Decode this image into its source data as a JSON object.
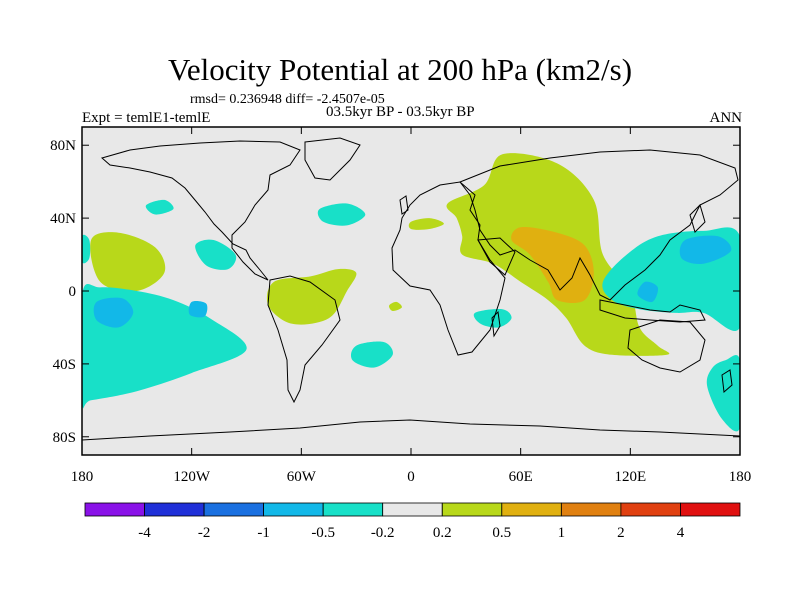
{
  "header": {
    "title": "Velocity Potential at 200 hPa (km2/s)",
    "stats": "rmsd= 0.236948  diff= -2.4507e-05",
    "experiment": "Expt = temlE1-temlE",
    "period": "03.5kyr BP - 03.5kyr BP",
    "season": "ANN"
  },
  "map": {
    "projection": "cylindrical equidistant",
    "lon_range": [
      -180,
      180
    ],
    "lat_range": [
      -90,
      90
    ],
    "lat_labels": [
      {
        "label": "80N",
        "lat": 80
      },
      {
        "label": "40N",
        "lat": 40
      },
      {
        "label": "0",
        "lat": 0
      },
      {
        "label": "40S",
        "lat": -40
      },
      {
        "label": "80S",
        "lat": -80
      }
    ],
    "lon_labels": [
      {
        "label": "180",
        "lon": -180
      },
      {
        "label": "120W",
        "lon": -120
      },
      {
        "label": "60W",
        "lon": -60
      },
      {
        "label": "0",
        "lon": 0
      },
      {
        "label": "60E",
        "lon": 60
      },
      {
        "label": "120E",
        "lon": 120
      },
      {
        "label": "180",
        "lon": 180
      }
    ]
  },
  "chart_data": {
    "type": "contour-map",
    "title": "Velocity Potential at 200 hPa (km2/s)",
    "background_color": "#e8e8e8",
    "colorbar": {
      "colors": [
        "#8a12e8",
        "#2030d8",
        "#1a70e0",
        "#12b8e8",
        "#18e0c8",
        "#e8e8e8",
        "#b8d81a",
        "#e0b010",
        "#e08010",
        "#e04010",
        "#e01010"
      ],
      "labels": [
        "-4",
        "-2",
        "-1",
        "-0.5",
        "-0.2",
        "0.2",
        "0.5",
        "1",
        "2",
        "4"
      ]
    },
    "regions": [
      {
        "name": "asia-positive",
        "level": "0.2 to 0.5",
        "color": "#b8d81a",
        "outline": [
          [
            50,
            75
          ],
          [
            80,
            70
          ],
          [
            100,
            50
          ],
          [
            105,
            20
          ],
          [
            120,
            0
          ],
          [
            125,
            -20
          ],
          [
            135,
            -30
          ],
          [
            140,
            -35
          ],
          [
            110,
            -35
          ],
          [
            95,
            -30
          ],
          [
            85,
            -15
          ],
          [
            75,
            -5
          ],
          [
            60,
            5
          ],
          [
            45,
            15
          ],
          [
            28,
            20
          ],
          [
            28,
            30
          ],
          [
            25,
            40
          ],
          [
            20,
            48
          ],
          [
            40,
            58
          ]
        ]
      },
      {
        "name": "asia-core",
        "level": "0.5 to 1",
        "color": "#e0b010",
        "outline": [
          [
            60,
            35
          ],
          [
            80,
            32
          ],
          [
            95,
            25
          ],
          [
            100,
            10
          ],
          [
            95,
            -5
          ],
          [
            80,
            -5
          ],
          [
            75,
            5
          ],
          [
            65,
            20
          ],
          [
            55,
            28
          ]
        ]
      },
      {
        "name": "mideast-patch",
        "level": "0.2 to 0.5",
        "color": "#b8d81a",
        "outline": [
          [
            0,
            38
          ],
          [
            10,
            40
          ],
          [
            18,
            37
          ],
          [
            10,
            34
          ],
          [
            0,
            34
          ]
        ]
      },
      {
        "name": "atlantic-positive",
        "level": "0.2 to 0.5",
        "color": "#b8d81a",
        "outline": [
          [
            -75,
            5
          ],
          [
            -55,
            8
          ],
          [
            -40,
            12
          ],
          [
            -30,
            10
          ],
          [
            -35,
            0
          ],
          [
            -45,
            -15
          ],
          [
            -65,
            -18
          ],
          [
            -78,
            -8
          ]
        ]
      },
      {
        "name": "atlantic-small",
        "level": "0.2 to 0.5",
        "color": "#b8d81a",
        "outline": [
          [
            -12,
            -8
          ],
          [
            -8,
            -6
          ],
          [
            -5,
            -9
          ],
          [
            -10,
            -11
          ]
        ]
      },
      {
        "name": "pacific-positive-north",
        "level": "0.2 to 0.5",
        "color": "#b8d81a",
        "outline": [
          [
            -175,
            28
          ],
          [
            -160,
            32
          ],
          [
            -140,
            24
          ],
          [
            -135,
            10
          ],
          [
            -150,
            0
          ],
          [
            -170,
            5
          ]
        ]
      },
      {
        "name": "mexico-negative",
        "level": "-0.5 to -0.2",
        "color": "#18e0c8",
        "outline": [
          [
            -118,
            25
          ],
          [
            -108,
            28
          ],
          [
            -96,
            20
          ],
          [
            -100,
            12
          ],
          [
            -112,
            14
          ]
        ]
      },
      {
        "name": "north-pacific-negative",
        "level": "-0.5 to -0.2",
        "color": "#18e0c8",
        "outline": [
          [
            -145,
            47
          ],
          [
            -135,
            50
          ],
          [
            -130,
            45
          ],
          [
            -140,
            42
          ]
        ]
      },
      {
        "name": "north-atlantic-negative",
        "level": "-0.5 to -0.2",
        "color": "#18e0c8",
        "outline": [
          [
            -50,
            45
          ],
          [
            -35,
            48
          ],
          [
            -25,
            42
          ],
          [
            -35,
            36
          ],
          [
            -48,
            38
          ]
        ]
      },
      {
        "name": "south-pacific-negative",
        "level": "-0.5 to -0.2",
        "color": "#18e0c8",
        "outline": [
          [
            -180,
            -2
          ],
          [
            -170,
            2
          ],
          [
            -150,
            0
          ],
          [
            -130,
            -5
          ],
          [
            -110,
            -15
          ],
          [
            -90,
            -32
          ],
          [
            -120,
            -45
          ],
          [
            -150,
            -55
          ],
          [
            -175,
            -60
          ],
          [
            -180,
            -60
          ]
        ]
      },
      {
        "name": "sp-core-1",
        "level": "-1 to -0.5",
        "color": "#12b8e8",
        "outline": [
          [
            -172,
            -6
          ],
          [
            -158,
            -4
          ],
          [
            -152,
            -12
          ],
          [
            -160,
            -20
          ],
          [
            -172,
            -16
          ]
        ]
      },
      {
        "name": "sp-core-2",
        "level": "-1 to -0.5",
        "color": "#12b8e8",
        "outline": [
          [
            -120,
            -6
          ],
          [
            -112,
            -7
          ],
          [
            -113,
            -14
          ],
          [
            -121,
            -13
          ]
        ]
      },
      {
        "name": "south-atlantic-negative",
        "level": "-0.5 to -0.2",
        "color": "#18e0c8",
        "outline": [
          [
            -30,
            -30
          ],
          [
            -15,
            -28
          ],
          [
            -10,
            -35
          ],
          [
            -20,
            -42
          ],
          [
            -32,
            -38
          ]
        ]
      },
      {
        "name": "india-ocean-negative",
        "level": "-0.5 to -0.2",
        "color": "#18e0c8",
        "outline": [
          [
            35,
            -12
          ],
          [
            50,
            -10
          ],
          [
            55,
            -15
          ],
          [
            48,
            -20
          ],
          [
            38,
            -18
          ]
        ]
      },
      {
        "name": "far-west-negative",
        "level": "-0.5 to -0.2",
        "color": "#18e0c8",
        "outline": [
          [
            -180,
            30
          ],
          [
            -176,
            28
          ],
          [
            -176,
            18
          ],
          [
            -180,
            16
          ]
        ]
      },
      {
        "name": "maritime-negative",
        "level": "-0.5 to -0.2",
        "color": "#18e0c8",
        "outline": [
          [
            105,
            5
          ],
          [
            118,
            20
          ],
          [
            135,
            30
          ],
          [
            160,
            33
          ],
          [
            180,
            30
          ],
          [
            180,
            -20
          ],
          [
            160,
            -12
          ],
          [
            145,
            -12
          ],
          [
            125,
            -10
          ],
          [
            110,
            -5
          ]
        ]
      },
      {
        "name": "maritime-core-1",
        "level": "-1 to -0.5",
        "color": "#12b8e8",
        "outline": [
          [
            150,
            28
          ],
          [
            168,
            30
          ],
          [
            175,
            22
          ],
          [
            160,
            15
          ],
          [
            148,
            18
          ]
        ]
      },
      {
        "name": "maritime-core-2",
        "level": "-1 to -0.5",
        "color": "#12b8e8",
        "outline": [
          [
            128,
            5
          ],
          [
            135,
            2
          ],
          [
            132,
            -6
          ],
          [
            124,
            -2
          ]
        ]
      },
      {
        "name": "southeast-negative",
        "level": "-0.5 to -0.2",
        "color": "#18e0c8",
        "outline": [
          [
            165,
            -42
          ],
          [
            172,
            -38
          ],
          [
            180,
            -38
          ],
          [
            180,
            -75
          ],
          [
            170,
            -70
          ],
          [
            162,
            -52
          ]
        ]
      }
    ]
  },
  "colorbar_labels": [
    "-4",
    "-2",
    "-1",
    "-0.5",
    "-0.2",
    "0.2",
    "0.5",
    "1",
    "2",
    "4"
  ]
}
